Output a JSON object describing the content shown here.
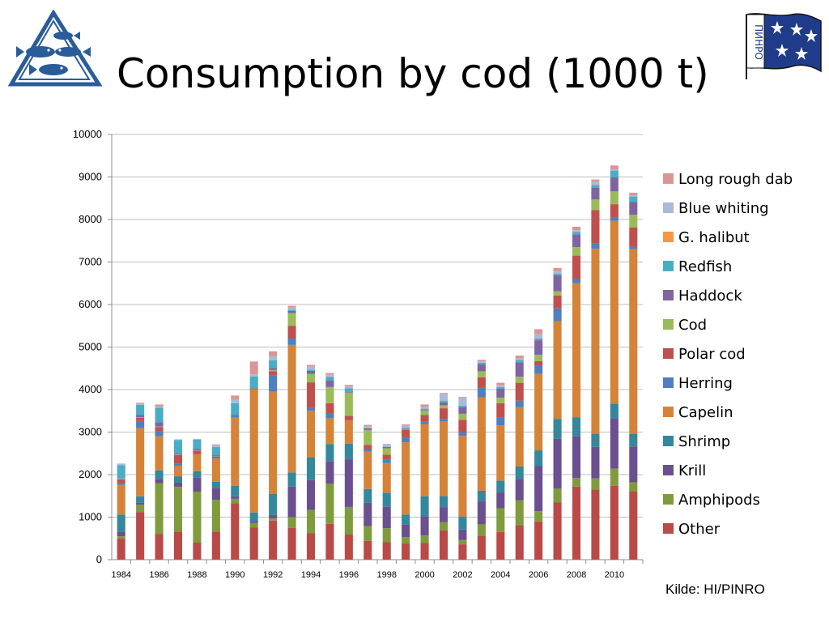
{
  "title": "Consumption by cod (1000 t)",
  "source": "Kilde: HI/PINRO",
  "logos": {
    "left_icon": "fish-triangle-logo",
    "right_icon": "pinro-flag-logo",
    "right_text": "ПИНРО"
  },
  "chart_data": {
    "type": "bar",
    "stacked": true,
    "ylim": [
      0,
      10000
    ],
    "yticks": [
      0,
      1000,
      2000,
      3000,
      4000,
      5000,
      6000,
      7000,
      8000,
      9000,
      10000
    ],
    "xticks": [
      "1984",
      "1986",
      "1988",
      "1990",
      "1992",
      "1994",
      "1996",
      "1998",
      "2000",
      "2002",
      "2004",
      "2006",
      "2008",
      "2010"
    ],
    "grid": true,
    "legend_position": "right",
    "categories": [
      "1984",
      "1985",
      "1986",
      "1987",
      "1988",
      "1989",
      "1990",
      "1991",
      "1992",
      "1993",
      "1994",
      "1995",
      "1996",
      "1997",
      "1998",
      "1999",
      "2000",
      "2001",
      "2002",
      "2003",
      "2004",
      "2005",
      "2006",
      "2007",
      "2008",
      "2009",
      "2010",
      "2011"
    ],
    "series": [
      {
        "name": "Other",
        "color": "#b94a48",
        "values": [
          500,
          1120,
          600,
          660,
          400,
          660,
          1330,
          760,
          920,
          750,
          620,
          840,
          590,
          440,
          410,
          380,
          390,
          690,
          360,
          560,
          650,
          800,
          900,
          1350,
          1720,
          1650,
          1740,
          1600
        ]
      },
      {
        "name": "Amphipods",
        "color": "#7f9b3d",
        "values": [
          50,
          170,
          1200,
          1050,
          1200,
          750,
          100,
          100,
          50,
          250,
          550,
          950,
          650,
          350,
          330,
          150,
          180,
          190,
          100,
          270,
          560,
          600,
          240,
          320,
          200,
          260,
          400,
          220
        ]
      },
      {
        "name": "Krill",
        "color": "#6a508e",
        "values": [
          110,
          50,
          100,
          100,
          330,
          280,
          60,
          50,
          80,
          720,
          700,
          530,
          1120,
          550,
          500,
          290,
          450,
          350,
          250,
          540,
          370,
          500,
          1060,
          1170,
          990,
          740,
          1190,
          840
        ]
      },
      {
        "name": "Shrimp",
        "color": "#35879b",
        "values": [
          400,
          150,
          200,
          150,
          150,
          140,
          250,
          200,
          500,
          330,
          530,
          400,
          370,
          320,
          330,
          240,
          470,
          270,
          300,
          250,
          280,
          290,
          370,
          470,
          440,
          310,
          340,
          300
        ]
      },
      {
        "name": "Capelin",
        "color": "#d58338",
        "values": [
          700,
          1600,
          800,
          250,
          400,
          550,
          1600,
          2900,
          2400,
          3000,
          1100,
          600,
          550,
          880,
          700,
          1700,
          1700,
          1750,
          1900,
          2200,
          1300,
          1400,
          1800,
          2300,
          3150,
          4350,
          4300,
          4340
        ]
      },
      {
        "name": "Herring",
        "color": "#4f7fbe",
        "values": [
          50,
          170,
          120,
          50,
          0,
          50,
          50,
          0,
          380,
          150,
          70,
          110,
          0,
          60,
          80,
          100,
          60,
          60,
          80,
          220,
          190,
          150,
          200,
          300,
          100,
          130,
          70,
          60
        ]
      },
      {
        "name": "Polar cod",
        "color": "#c0504d",
        "values": [
          80,
          80,
          100,
          200,
          80,
          0,
          0,
          20,
          100,
          300,
          600,
          250,
          100,
          100,
          120,
          200,
          150,
          250,
          300,
          250,
          330,
          420,
          100,
          300,
          550,
          780,
          320,
          450
        ]
      },
      {
        "name": "Cod",
        "color": "#9bbb59",
        "values": [
          10,
          10,
          10,
          10,
          10,
          10,
          0,
          0,
          30,
          300,
          200,
          380,
          550,
          350,
          150,
          10,
          100,
          70,
          140,
          140,
          130,
          140,
          150,
          100,
          200,
          250,
          300,
          300
        ]
      },
      {
        "name": "Haddock",
        "color": "#8064a2",
        "values": [
          10,
          50,
          100,
          30,
          30,
          30,
          10,
          0,
          50,
          50,
          70,
          150,
          20,
          40,
          30,
          10,
          20,
          70,
          150,
          160,
          210,
          340,
          340,
          380,
          300,
          280,
          330,
          300
        ]
      },
      {
        "name": "Redfish",
        "color": "#4bacc6",
        "values": [
          310,
          240,
          340,
          310,
          220,
          180,
          280,
          280,
          180,
          30,
          30,
          90,
          80,
          10,
          10,
          30,
          30,
          40,
          40,
          40,
          40,
          60,
          40,
          40,
          60,
          60,
          160,
          130
        ]
      },
      {
        "name": "G. halibut",
        "color": "#f79646",
        "values": [
          0,
          0,
          0,
          0,
          0,
          0,
          0,
          0,
          0,
          0,
          0,
          0,
          0,
          0,
          0,
          0,
          0,
          0,
          0,
          0,
          0,
          0,
          0,
          0,
          0,
          0,
          0,
          0
        ]
      },
      {
        "name": "Blue whiting",
        "color": "#aabad7",
        "values": [
          30,
          20,
          30,
          20,
          10,
          30,
          80,
          50,
          100,
          50,
          70,
          50,
          40,
          30,
          40,
          40,
          50,
          160,
          200,
          30,
          40,
          30,
          100,
          50,
          40,
          70,
          30,
          30
        ]
      },
      {
        "name": "Long rough dab",
        "color": "#d99694",
        "values": [
          10,
          30,
          50,
          0,
          10,
          30,
          100,
          300,
          110,
          40,
          40,
          40,
          40,
          40,
          20,
          30,
          50,
          20,
          10,
          40,
          60,
          70,
          120,
          80,
          80,
          60,
          90,
          60
        ]
      }
    ]
  }
}
